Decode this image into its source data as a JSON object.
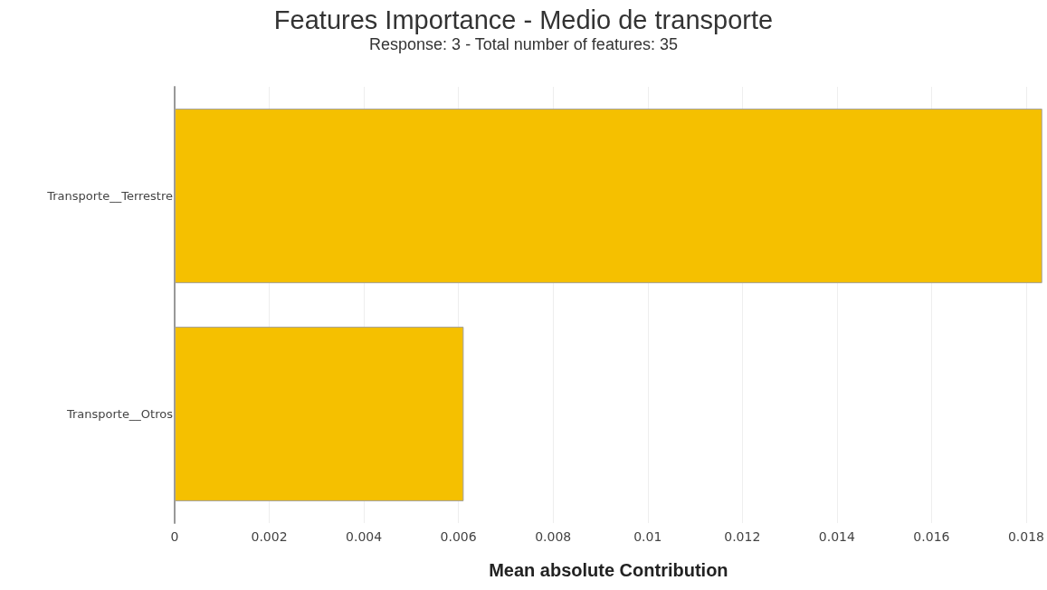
{
  "chart_data": {
    "type": "bar",
    "title": "Features Importance - Medio de transporte",
    "subtitle": "Response: 3 - Total number of features: 35",
    "xlabel": "Mean absolute Contribution",
    "orientation": "horizontal",
    "categories": [
      "Transporte__Terrestre",
      "Transporte__Otros"
    ],
    "values": [
      0.01834,
      0.00611
    ],
    "color": "#f5c000",
    "xlim": [
      0,
      0.01834
    ],
    "xticks": [
      0,
      0.002,
      0.004,
      0.006,
      0.008,
      0.01,
      0.012,
      0.014,
      0.016,
      0.018
    ],
    "grid": "x"
  }
}
